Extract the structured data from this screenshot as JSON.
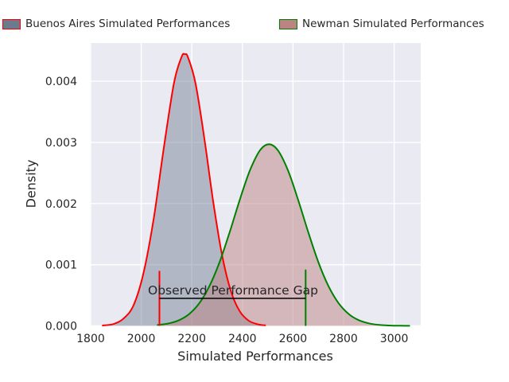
{
  "legend": {
    "items": [
      {
        "label": "Buenos Aires Simulated Performances",
        "fill": "#6d7a8e",
        "edge": "#ff0000"
      },
      {
        "label": "Newman Simulated Performances",
        "fill": "#bc8383",
        "edge": "#008000"
      }
    ]
  },
  "chart_data": {
    "type": "area",
    "subtype": "kde-density",
    "title": "",
    "xlabel": "Simulated Performances",
    "ylabel": "Density",
    "xlim": [
      1797,
      3105
    ],
    "ylim": [
      0,
      0.004625
    ],
    "xticks": [
      1800,
      2000,
      2200,
      2400,
      2600,
      2800,
      3000
    ],
    "yticks": [
      0,
      0.001,
      0.002,
      0.003,
      0.004
    ],
    "ytick_labels": [
      "0.000",
      "0.001",
      "0.002",
      "0.003",
      "0.004"
    ],
    "grid": true,
    "plot_background": "#eaeaf2",
    "gridline_color": "#ffffff",
    "legend_position": "top",
    "series": [
      {
        "name": "Buenos Aires Simulated Performances",
        "line_color": "#ff0000",
        "fill_color": "#6d7a8e",
        "fill_opacity": 0.45,
        "peak_x": 2172,
        "peak_density": 0.00444,
        "points": [
          [
            1848,
            7e-06
          ],
          [
            1890,
            3e-05
          ],
          [
            1930,
            0.00012
          ],
          [
            1970,
            0.00034
          ],
          [
            2010,
            0.00088
          ],
          [
            2050,
            0.00177
          ],
          [
            2090,
            0.00293
          ],
          [
            2130,
            0.00398
          ],
          [
            2160,
            0.0044
          ],
          [
            2172,
            0.00444
          ],
          [
            2185,
            0.00439
          ],
          [
            2215,
            0.00396
          ],
          [
            2250,
            0.00305
          ],
          [
            2285,
            0.00202
          ],
          [
            2320,
            0.00115
          ],
          [
            2355,
            0.00056
          ],
          [
            2390,
            0.000236
          ],
          [
            2425,
            8.5e-05
          ],
          [
            2460,
            2.7e-05
          ],
          [
            2490,
            9e-06
          ]
        ]
      },
      {
        "name": "Newman Simulated Performances",
        "line_color": "#008000",
        "fill_color": "#bc8383",
        "fill_opacity": 0.5,
        "peak_x": 2505,
        "peak_density": 0.00297,
        "points": [
          [
            2065,
            1.5e-05
          ],
          [
            2110,
            4.1e-05
          ],
          [
            2150,
            9.4e-05
          ],
          [
            2190,
            0.000195
          ],
          [
            2230,
            0.000373
          ],
          [
            2270,
            0.000653
          ],
          [
            2310,
            0.001046
          ],
          [
            2350,
            0.001537
          ],
          [
            2390,
            0.002066
          ],
          [
            2430,
            0.002545
          ],
          [
            2470,
            0.002872
          ],
          [
            2505,
            0.00297
          ],
          [
            2540,
            0.002872
          ],
          [
            2580,
            0.002545
          ],
          [
            2620,
            0.002066
          ],
          [
            2660,
            0.001537
          ],
          [
            2700,
            0.001046
          ],
          [
            2740,
            0.000653
          ],
          [
            2780,
            0.000373
          ],
          [
            2820,
            0.000195
          ],
          [
            2860,
            9.4e-05
          ],
          [
            2905,
            3.7e-05
          ],
          [
            2950,
            1.3e-05
          ],
          [
            3000,
            4e-06
          ],
          [
            3060,
            1e-06
          ]
        ]
      }
    ],
    "vlines": [
      {
        "x": 2072,
        "y0": 0,
        "y1": 0.0009,
        "color": "#ff0000"
      },
      {
        "x": 2650,
        "y0": 0,
        "y1": 0.00092,
        "color": "#008000"
      }
    ],
    "gap_line": {
      "x1": 2072,
      "x2": 2650,
      "y": 0.00045,
      "color": "#000000"
    },
    "annotation": {
      "text": "Observed Performance Gap",
      "x": 2361,
      "y": 0.00045
    }
  }
}
